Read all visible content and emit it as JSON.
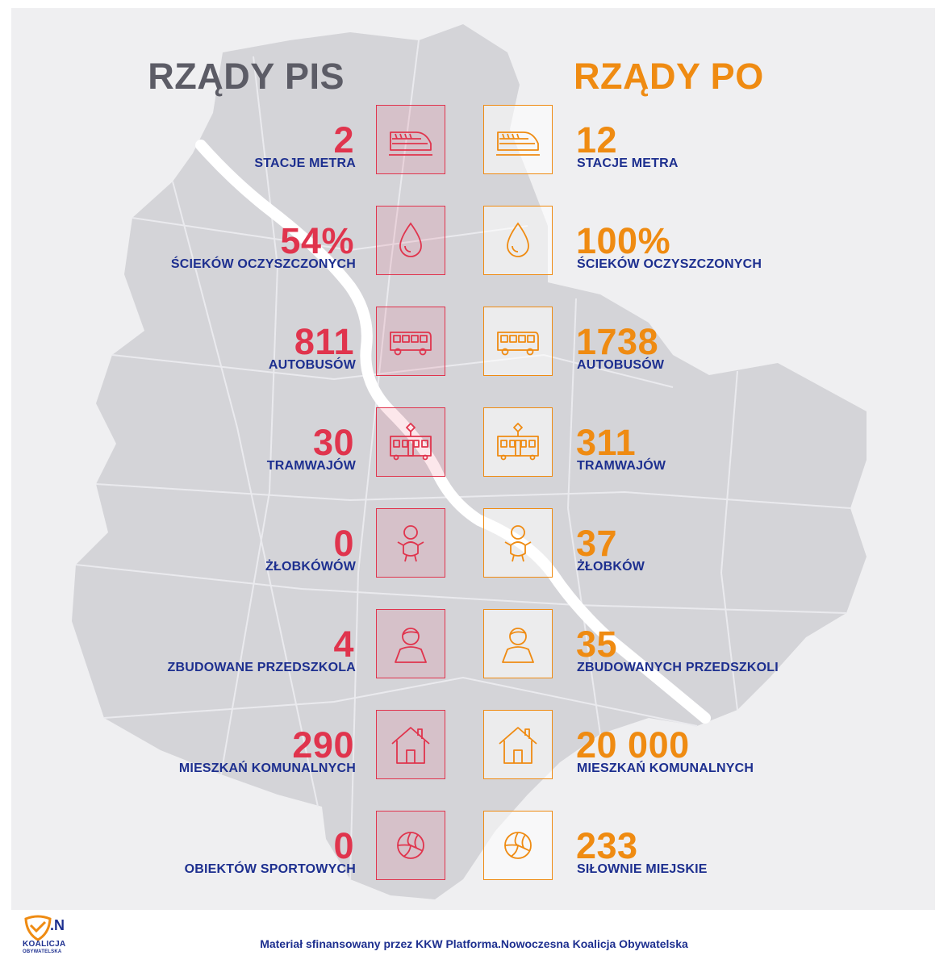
{
  "headings": {
    "left": "RZĄDY PIS",
    "right": "RZĄDY PO"
  },
  "colors": {
    "pis": "#e0344d",
    "po": "#ef8b12",
    "label": "#1d2f8f",
    "pis_heading": "#5c5c66",
    "map": "#d4d4d8",
    "river": "#ffffff"
  },
  "rows": [
    {
      "icon": "metro-train-icon",
      "pis_value": "2",
      "pis_label": "STACJE METRA",
      "po_value": "12",
      "po_label": "STACJE METRA"
    },
    {
      "icon": "water-drop-icon",
      "pis_value": "54%",
      "pis_label": "ŚCIEKÓW OCZYSZCZONYCH",
      "po_value": "100%",
      "po_label": "ŚCIEKÓW OCZYSZCZONYCH"
    },
    {
      "icon": "bus-icon",
      "pis_value": "811",
      "pis_label": "AUTOBUSÓW",
      "po_value": "1738",
      "po_label": "AUTOBUSÓW"
    },
    {
      "icon": "tram-icon",
      "pis_value": "30",
      "pis_label": "TRAMWAJÓW",
      "po_value": "311",
      "po_label": "TRAMWAJÓW"
    },
    {
      "icon": "baby-icon",
      "pis_value": "0",
      "pis_label": "ŻŁOBKÓWÓW",
      "po_value": "37",
      "po_label": "ŻŁOBKÓW"
    },
    {
      "icon": "child-icon",
      "pis_value": "4",
      "pis_label": "ZBUDOWANE PRZEDSZKOLA",
      "po_value": "35",
      "po_label": "ZBUDOWANYCH PRZEDSZKOLI"
    },
    {
      "icon": "house-icon",
      "pis_value": "290",
      "pis_label": "MIESZKAŃ KOMUNALNYCH",
      "po_value": "20 000",
      "po_label": "MIESZKAŃ KOMUNALNYCH"
    },
    {
      "icon": "volleyball-icon",
      "pis_value": "0",
      "pis_label": "OBIEKTÓW SPORTOWYCH",
      "po_value": "233",
      "po_label": "SIŁOWNIE MIEJSKIE"
    }
  ],
  "logo": {
    "mark": ".N",
    "name": "KOALICJA",
    "sub": "OBYWATELSKA"
  },
  "footer": "Materiał sfinansowany przez KKW Platforma.Nowoczesna Koalicja Obywatelska"
}
